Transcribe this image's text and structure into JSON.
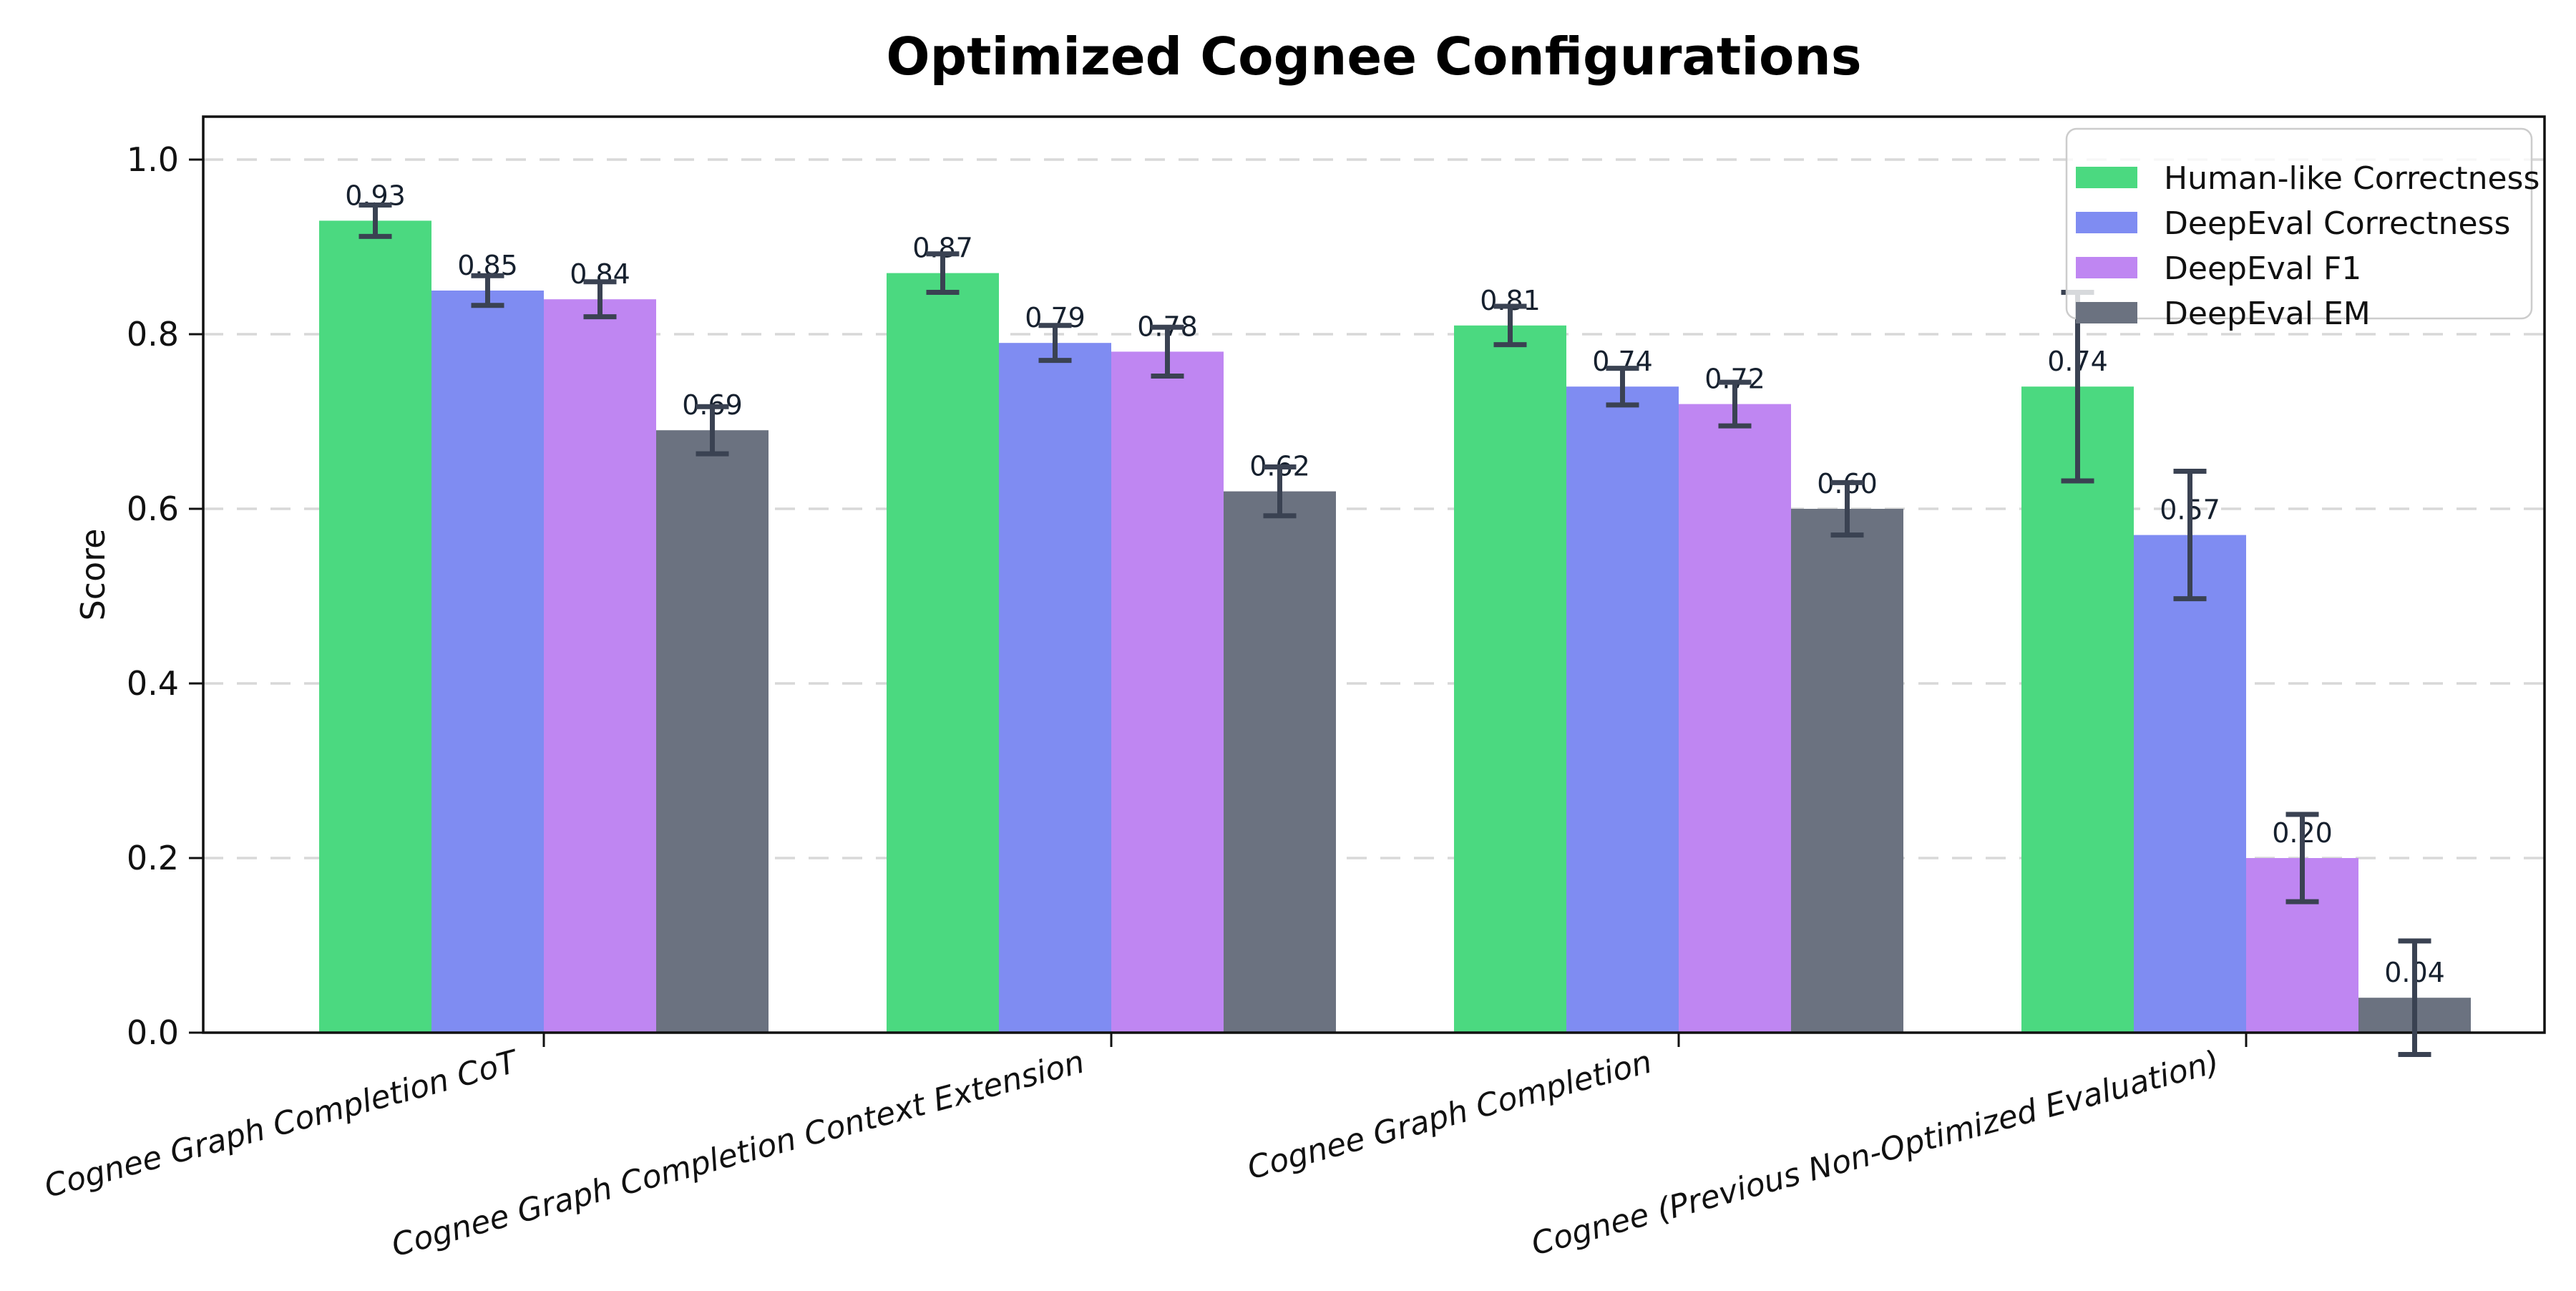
{
  "chart_data": {
    "type": "bar",
    "title": "Optimized Cognee Configurations",
    "xlabel": "",
    "ylabel": "Score",
    "ylim": [
      0.0,
      1.05
    ],
    "yticks": [
      "0.0",
      "0.2",
      "0.4",
      "0.6",
      "0.8",
      "1.0"
    ],
    "grid": "horizontal-dashed",
    "grid_color": "#d8d8d8",
    "legend_position": "upper-right",
    "categories": [
      "Cognee Graph Completion CoT",
      "Cognee Graph Completion Context Extension",
      "Cognee Graph Completion",
      "Cognee (Previous Non-Optimized Evaluation)"
    ],
    "series": [
      {
        "name": "Human-like Correctness",
        "color": "#4bd980",
        "values": [
          0.93,
          0.87,
          0.81,
          0.74
        ],
        "errors": [
          0.018,
          0.022,
          0.022,
          0.108
        ]
      },
      {
        "name": "DeepEval Correctness",
        "color": "#7f8cf2",
        "values": [
          0.85,
          0.79,
          0.74,
          0.57
        ],
        "errors": [
          0.017,
          0.02,
          0.021,
          0.073
        ]
      },
      {
        "name": "DeepEval F1",
        "color": "#bf86f2",
        "values": [
          0.84,
          0.78,
          0.72,
          0.2
        ],
        "errors": [
          0.02,
          0.028,
          0.025,
          0.05
        ]
      },
      {
        "name": "DeepEval EM",
        "color": "#6b7280",
        "values": [
          0.69,
          0.62,
          0.6,
          0.04
        ],
        "errors": [
          0.027,
          0.028,
          0.03,
          0.065
        ]
      }
    ],
    "error_bar_color": "#3a4252",
    "value_label_decimals": 2
  }
}
